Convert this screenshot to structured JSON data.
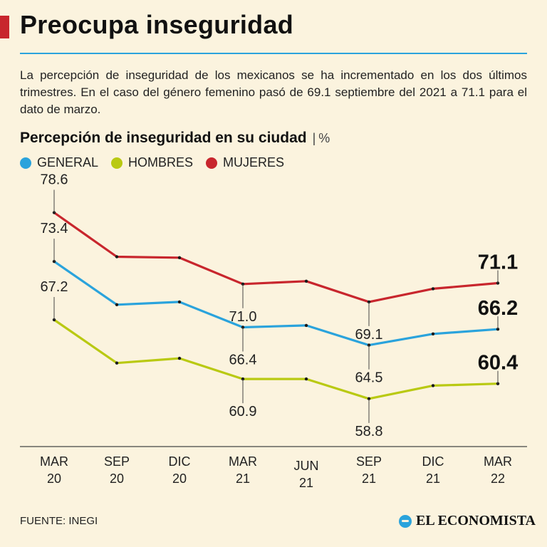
{
  "header": {
    "title": "Preocupa inseguridad",
    "description": "La percepción de inseguridad de los mexicanos se ha incrementado en los dos últimos trimestres. En el caso del género femenino pasó de 69.1 septiembre del 2021 a 71.1 para el dato de marzo."
  },
  "colors": {
    "accent": "#c8262d",
    "rule": "#2aa3dc",
    "general": "#2aa3dc",
    "hombres": "#b9c912",
    "mujeres": "#c8262d",
    "brand": "#2aa3dc"
  },
  "chart_data": {
    "type": "line",
    "title": "Percepción de inseguridad en su ciudad",
    "unit": "%",
    "categories": [
      [
        "MAR",
        "20"
      ],
      [
        "SEP",
        "20"
      ],
      [
        "DIC",
        "20"
      ],
      [
        "MAR",
        "21"
      ],
      [
        "JUN",
        "21"
      ],
      [
        "SEP",
        "21"
      ],
      [
        "DIC",
        "21"
      ],
      [
        "MAR",
        "22"
      ]
    ],
    "ylim": [
      55,
      80
    ],
    "series": [
      {
        "name": "GENERAL",
        "color": "#2aa3dc",
        "values": [
          73.4,
          68.8,
          69.1,
          66.4,
          66.6,
          64.5,
          65.7,
          66.2
        ],
        "labels": [
          [
            0,
            "73.4",
            "above",
            false
          ],
          [
            3,
            "66.4",
            "below",
            false
          ],
          [
            5,
            "64.5",
            "below",
            false
          ],
          [
            7,
            "66.2",
            "above",
            true
          ]
        ]
      },
      {
        "name": "HOMBRES",
        "color": "#b9c912",
        "values": [
          67.2,
          62.6,
          63.1,
          60.9,
          60.9,
          58.8,
          60.2,
          60.4
        ],
        "labels": [
          [
            0,
            "67.2",
            "above",
            false
          ],
          [
            3,
            "60.9",
            "below",
            false
          ],
          [
            5,
            "58.8",
            "below",
            false
          ],
          [
            7,
            "60.4",
            "above",
            true
          ]
        ]
      },
      {
        "name": "MUJERES",
        "color": "#c8262d",
        "values": [
          78.6,
          73.9,
          73.8,
          71.0,
          71.3,
          69.1,
          70.5,
          71.1
        ],
        "labels": [
          [
            0,
            "78.6",
            "above",
            false
          ],
          [
            3,
            "71.0",
            "below",
            false
          ],
          [
            5,
            "69.1",
            "below",
            false
          ],
          [
            7,
            "71.1",
            "above",
            true
          ]
        ]
      }
    ]
  },
  "footer": {
    "source": "FUENTE: INEGI",
    "brand": "EL ECONOMISTA"
  }
}
